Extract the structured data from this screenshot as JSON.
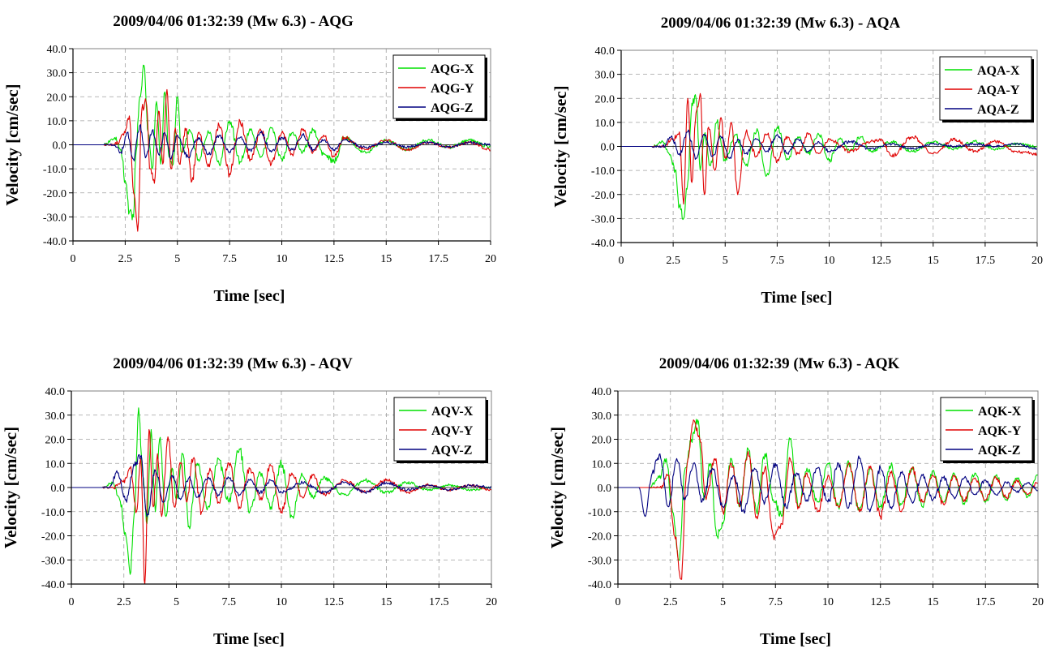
{
  "colors": {
    "x": "#00e000",
    "y": "#e00000",
    "z": "#000080"
  },
  "chart_data": [
    {
      "type": "line",
      "title": "2009/04/06 01:32:39 (Mw 6.3) - AQG",
      "xlabel": "Time [sec]",
      "ylabel": "Velocity [cm/sec]",
      "xlim": [
        0,
        20
      ],
      "ylim": [
        -40,
        40
      ],
      "xticks": [
        "0",
        "2.5",
        "5",
        "7.5",
        "10",
        "12.5",
        "15",
        "17.5",
        "20"
      ],
      "yticks": [
        "-40.0",
        "-30.0",
        "-20.0",
        "-10.0",
        "0.0",
        "10.0",
        "20.0",
        "30.0",
        "40.0"
      ],
      "grid": true,
      "legend": "top-right",
      "series": [
        {
          "name": "AQG-X",
          "x": [
            0,
            1.5,
            2,
            2.3,
            2.5,
            2.7,
            2.9,
            3.0,
            3.2,
            3.4,
            3.6,
            3.8,
            4.0,
            4.2,
            4.4,
            4.6,
            4.8,
            5.0,
            5.2,
            5.6,
            6.0,
            6.5,
            7.0,
            7.5,
            8.0,
            8.5,
            9.0,
            9.5,
            10,
            10.5,
            11,
            11.5,
            12,
            12.5,
            13,
            14,
            15,
            16,
            17,
            18,
            19,
            20
          ],
          "y": [
            0,
            0,
            3,
            -2,
            -15,
            -28,
            -30,
            -5,
            20,
            33,
            5,
            -10,
            18,
            -8,
            22,
            -5,
            -8,
            20,
            -3,
            6,
            -6,
            5,
            -8,
            10,
            -7,
            6,
            -5,
            7,
            -6,
            5,
            -3,
            6,
            -4,
            -7,
            3,
            -3,
            2,
            -2,
            2,
            -1,
            2,
            -1
          ]
        },
        {
          "name": "AQG-Y",
          "x": [
            0,
            2,
            2.5,
            2.7,
            2.9,
            3.1,
            3.3,
            3.5,
            3.7,
            3.9,
            4.1,
            4.3,
            4.5,
            4.7,
            4.9,
            5.1,
            5.4,
            5.7,
            6.0,
            6.5,
            7.0,
            7.5,
            8.0,
            8.5,
            9.0,
            9.5,
            10,
            10.5,
            11,
            11.5,
            12,
            12.5,
            13,
            14,
            15,
            16,
            17,
            18,
            19,
            20
          ],
          "y": [
            0,
            0,
            5,
            12,
            -20,
            -36,
            15,
            18,
            -10,
            -16,
            14,
            -8,
            23,
            -10,
            7,
            -8,
            6,
            -15,
            5,
            -8,
            8,
            -12,
            10,
            -6,
            6,
            -8,
            5,
            -4,
            6,
            -3,
            4,
            -5,
            3,
            -2,
            2,
            -2,
            1,
            -1,
            1,
            -2
          ]
        },
        {
          "name": "AQG-Z",
          "x": [
            0,
            2,
            2.3,
            2.6,
            2.9,
            3.2,
            3.5,
            3.8,
            4.1,
            4.4,
            4.7,
            5,
            5.5,
            6,
            6.5,
            7,
            7.5,
            8,
            8.5,
            9,
            9.5,
            10,
            10.5,
            11,
            11.5,
            12,
            12.5,
            13,
            14,
            15,
            16,
            17,
            18,
            19,
            20
          ],
          "y": [
            0,
            0,
            -3,
            5,
            -6,
            8,
            -5,
            6,
            -4,
            5,
            -6,
            4,
            -5,
            3,
            -4,
            4,
            -3,
            3,
            -2,
            5,
            -3,
            3,
            -2,
            4,
            -2,
            2,
            -2,
            2,
            -1,
            1,
            -1,
            1,
            -1,
            1,
            0
          ]
        }
      ]
    },
    {
      "type": "line",
      "title": "2009/04/06 01:32:39 (Mw 6.3) - AQA",
      "xlabel": "Time [sec]",
      "ylabel": "Velocity [cm/sec]",
      "xlim": [
        0,
        20
      ],
      "ylim": [
        -40,
        40
      ],
      "xticks": [
        "0",
        "2.5",
        "5",
        "7.5",
        "10",
        "12.5",
        "15",
        "17.5",
        "20"
      ],
      "yticks": [
        "-40.0",
        "-30.0",
        "-20.0",
        "-10.0",
        "0.0",
        "10.0",
        "20.0",
        "30.0",
        "40.0"
      ],
      "grid": true,
      "legend": "top-right",
      "series": [
        {
          "name": "AQA-X",
          "x": [
            0,
            1.5,
            2,
            2.3,
            2.6,
            2.8,
            3.0,
            3.2,
            3.4,
            3.6,
            3.8,
            4.0,
            4.3,
            4.6,
            5.0,
            5.5,
            6.0,
            6.5,
            7.0,
            7.5,
            8.0,
            8.5,
            9.0,
            9.5,
            10,
            10.5,
            11,
            11.5,
            12,
            13,
            14,
            15,
            16,
            17,
            18,
            19,
            20
          ],
          "y": [
            0,
            0,
            2,
            -3,
            -10,
            -25,
            -30,
            -15,
            18,
            20,
            -10,
            5,
            -8,
            10,
            -6,
            5,
            -8,
            6,
            -12,
            8,
            -5,
            4,
            -3,
            5,
            -6,
            3,
            -2,
            4,
            -2,
            2,
            -2,
            2,
            -1,
            2,
            -1,
            1,
            0
          ]
        },
        {
          "name": "AQA-Y",
          "x": [
            0,
            2,
            2.5,
            2.8,
            3.0,
            3.2,
            3.4,
            3.6,
            3.8,
            4.0,
            4.2,
            4.5,
            4.8,
            5.0,
            5.3,
            5.6,
            6.0,
            6.5,
            7.0,
            7.5,
            8.0,
            8.5,
            9.0,
            9.5,
            10,
            11,
            12,
            12.5,
            13,
            14,
            15,
            16,
            17,
            18,
            19,
            20
          ],
          "y": [
            0,
            0,
            3,
            6,
            -24,
            20,
            -15,
            14,
            22,
            -20,
            8,
            -10,
            12,
            -5,
            10,
            -20,
            6,
            -4,
            5,
            -6,
            4,
            -3,
            5,
            -3,
            3,
            -2,
            2,
            3,
            -4,
            4,
            -3,
            3,
            -2,
            2,
            -2,
            -3
          ]
        },
        {
          "name": "AQA-Z",
          "x": [
            0,
            2,
            2.4,
            2.8,
            3.2,
            3.6,
            4.0,
            4.4,
            4.8,
            5.2,
            5.6,
            6,
            6.5,
            7,
            7.5,
            8,
            8.5,
            9,
            9.5,
            10,
            11,
            12,
            13,
            14,
            15,
            16,
            17,
            18,
            19,
            20
          ],
          "y": [
            0,
            0,
            4,
            -3,
            6,
            -5,
            5,
            -4,
            4,
            -5,
            3,
            -3,
            3,
            -2,
            5,
            -3,
            3,
            -2,
            2,
            -2,
            2,
            -1,
            1,
            -1,
            1,
            0,
            1,
            0,
            1,
            -1
          ]
        }
      ]
    },
    {
      "type": "line",
      "title": "2009/04/06 01:32:39 (Mw 6.3) - AQV",
      "xlabel": "Time [sec]",
      "ylabel": "Velocity [cm/sec]",
      "xlim": [
        0,
        20
      ],
      "ylim": [
        -40,
        40
      ],
      "xticks": [
        "0",
        "2.5",
        "5",
        "7.5",
        "10",
        "12.5",
        "15",
        "17.5",
        "20"
      ],
      "yticks": [
        "-40.0",
        "-30.0",
        "-20.0",
        "-10.0",
        "0.0",
        "10.0",
        "20.0",
        "30.0",
        "40.0"
      ],
      "grid": true,
      "legend": "top-right",
      "series": [
        {
          "name": "AQV-X",
          "x": [
            0,
            1.5,
            2,
            2.3,
            2.6,
            2.8,
            3.0,
            3.2,
            3.4,
            3.6,
            3.8,
            4.0,
            4.2,
            4.5,
            4.8,
            5.0,
            5.3,
            5.6,
            6.0,
            6.5,
            7.0,
            7.5,
            8.0,
            8.5,
            9.0,
            9.5,
            10,
            10.5,
            11,
            11.5,
            12,
            13,
            14,
            15,
            16,
            17,
            18,
            19,
            20
          ],
          "y": [
            0,
            0,
            2,
            -5,
            -20,
            -36,
            -10,
            33,
            5,
            -15,
            24,
            -10,
            20,
            -12,
            8,
            -5,
            14,
            -16,
            10,
            -8,
            12,
            -6,
            16,
            -10,
            6,
            -8,
            10,
            -12,
            5,
            -4,
            4,
            -3,
            3,
            -2,
            2,
            -1,
            1,
            -1,
            0
          ]
        },
        {
          "name": "AQV-Y",
          "x": [
            0,
            2,
            2.5,
            2.8,
            3.1,
            3.3,
            3.5,
            3.7,
            3.9,
            4.1,
            4.3,
            4.6,
            4.9,
            5.2,
            5.5,
            5.8,
            6.2,
            6.6,
            7.0,
            7.5,
            8.0,
            8.5,
            9.0,
            9.5,
            10,
            10.5,
            11,
            11.5,
            12,
            13,
            14,
            15,
            16,
            17,
            18,
            19,
            20
          ],
          "y": [
            0,
            0,
            3,
            8,
            -10,
            12,
            -40,
            24,
            -8,
            14,
            -12,
            21,
            -8,
            10,
            -6,
            12,
            -10,
            8,
            -6,
            10,
            -8,
            8,
            -5,
            9,
            -10,
            6,
            -4,
            5,
            -3,
            3,
            -2,
            3,
            -2,
            1,
            -1,
            1,
            -1
          ]
        },
        {
          "name": "AQV-Z",
          "x": [
            0,
            1.8,
            2.2,
            2.6,
            3.0,
            3.3,
            3.6,
            4.0,
            4.4,
            4.8,
            5.2,
            5.6,
            6.0,
            6.5,
            7.0,
            7.5,
            8.0,
            8.5,
            9,
            9.5,
            10,
            11,
            12,
            13,
            14,
            15,
            16,
            17,
            18,
            19,
            20
          ],
          "y": [
            0,
            0,
            6,
            -5,
            9,
            13,
            -12,
            7,
            -6,
            5,
            -5,
            4,
            -4,
            4,
            -3,
            4,
            -3,
            3,
            -2,
            3,
            -2,
            2,
            -2,
            2,
            -2,
            2,
            -1,
            1,
            -1,
            1,
            0
          ]
        }
      ]
    },
    {
      "type": "line",
      "title": "2009/04/06 01:32:39 (Mw 6.3) - AQK",
      "xlabel": "Time [sec]",
      "ylabel": "Velocity [cm/sec]",
      "xlim": [
        0,
        20
      ],
      "ylim": [
        -40,
        40
      ],
      "xticks": [
        "0",
        "2.5",
        "5",
        "7.5",
        "10",
        "12.5",
        "15",
        "17.5",
        "20"
      ],
      "yticks": [
        "-40.0",
        "-30.0",
        "-20.0",
        "-10.0",
        "0.0",
        "10.0",
        "20.0",
        "30.0",
        "40.0"
      ],
      "grid": true,
      "legend": "top-right",
      "series": [
        {
          "name": "AQK-X",
          "x": [
            0,
            1.5,
            2,
            2.3,
            2.6,
            2.9,
            3.2,
            3.5,
            3.8,
            4.1,
            4.4,
            4.7,
            5.0,
            5.4,
            5.8,
            6.2,
            6.6,
            7.0,
            7.4,
            7.8,
            8.2,
            8.6,
            9.0,
            9.5,
            10,
            10.5,
            11,
            11.5,
            12,
            12.5,
            13,
            13.5,
            14,
            14.5,
            15,
            15.5,
            16,
            16.5,
            17,
            17.5,
            18,
            18.5,
            19,
            19.5,
            20
          ],
          "y": [
            0,
            0,
            5,
            12,
            -10,
            -30,
            8,
            20,
            28,
            -5,
            10,
            -20,
            -15,
            12,
            -8,
            16,
            -10,
            14,
            -5,
            -12,
            20,
            -8,
            8,
            -6,
            10,
            -8,
            10,
            -10,
            8,
            -8,
            9,
            -7,
            8,
            -8,
            7,
            -6,
            6,
            -7,
            6,
            -6,
            5,
            -5,
            4,
            -4,
            5
          ]
        },
        {
          "name": "AQK-Y",
          "x": [
            0,
            2,
            2.4,
            2.7,
            3.0,
            3.3,
            3.6,
            3.9,
            4.2,
            4.6,
            5.0,
            5.4,
            5.8,
            6.2,
            6.6,
            7.0,
            7.4,
            7.8,
            8.2,
            8.6,
            9.0,
            9.5,
            10,
            10.5,
            11,
            11.5,
            12,
            12.5,
            13,
            13.5,
            14,
            14.5,
            15,
            15.5,
            16,
            16.5,
            17,
            17.5,
            18,
            18.5,
            19,
            19.5,
            20
          ],
          "y": [
            0,
            0,
            5,
            -20,
            -38,
            10,
            28,
            20,
            -5,
            12,
            -10,
            10,
            -8,
            15,
            -12,
            8,
            -20,
            -15,
            12,
            -8,
            6,
            -10,
            5,
            -8,
            10,
            -10,
            8,
            -12,
            6,
            -10,
            8,
            -6,
            5,
            -7,
            5,
            -5,
            4,
            -5,
            4,
            -4,
            3,
            -3,
            2
          ]
        },
        {
          "name": "AQK-Z",
          "x": [
            0,
            1,
            1.3,
            1.6,
            2.0,
            2.4,
            2.8,
            3.2,
            3.6,
            4.0,
            4.5,
            5.0,
            5.5,
            6.0,
            6.5,
            7.0,
            7.5,
            8.0,
            8.5,
            9.0,
            9.5,
            10,
            10.5,
            11,
            11.5,
            12,
            12.5,
            13,
            13.5,
            14,
            14.5,
            15,
            15.5,
            16,
            16.5,
            17,
            17.5,
            18,
            18.5,
            19,
            19.5,
            20
          ],
          "y": [
            0,
            0,
            -12,
            5,
            14,
            -8,
            12,
            -5,
            10,
            -6,
            8,
            -8,
            5,
            -10,
            8,
            -6,
            10,
            -8,
            6,
            -5,
            8,
            -6,
            10,
            -8,
            12,
            -10,
            8,
            -8,
            6,
            -6,
            5,
            -5,
            4,
            -4,
            4,
            -3,
            3,
            -3,
            2,
            -2,
            2,
            -1
          ]
        }
      ]
    }
  ]
}
